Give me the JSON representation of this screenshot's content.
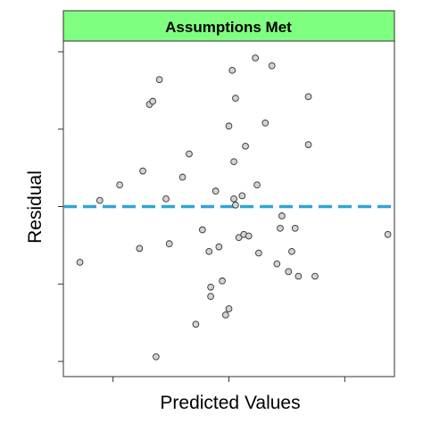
{
  "chart_data": {
    "type": "scatter",
    "title": "Assumptions Met",
    "xlabel": "Predicted Values",
    "ylabel": "Residual",
    "xlim": [
      0,
      1
    ],
    "ylim": [
      -1,
      1
    ],
    "x_ticks": [
      0.15,
      0.5,
      0.85
    ],
    "y_ticks": [
      -1,
      -0.5,
      0,
      0.5,
      1
    ],
    "show_tick_labels": false,
    "grid": false,
    "reference_line": {
      "y": 0,
      "style": "dashed",
      "color": "#2EA5DA"
    },
    "colors": {
      "strip_fill": "#80FF80",
      "point_fill": "#D3D3D3",
      "point_stroke": "#333333",
      "frame": "#333333"
    },
    "points": [
      [
        0.05,
        -0.36
      ],
      [
        0.11,
        0.04
      ],
      [
        0.17,
        0.14
      ],
      [
        0.23,
        -0.27
      ],
      [
        0.24,
        0.23
      ],
      [
        0.26,
        0.66
      ],
      [
        0.27,
        0.68
      ],
      [
        0.28,
        -0.97
      ],
      [
        0.29,
        0.82
      ],
      [
        0.31,
        0.05
      ],
      [
        0.32,
        -0.24
      ],
      [
        0.36,
        0.19
      ],
      [
        0.38,
        0.34
      ],
      [
        0.4,
        -0.76
      ],
      [
        0.42,
        -0.15
      ],
      [
        0.44,
        -0.29
      ],
      [
        0.445,
        -0.52
      ],
      [
        0.445,
        -0.58
      ],
      [
        0.46,
        0.1
      ],
      [
        0.47,
        -0.26
      ],
      [
        0.48,
        -0.48
      ],
      [
        0.49,
        -0.7
      ],
      [
        0.5,
        -0.66
      ],
      [
        0.5,
        0.52
      ],
      [
        0.51,
        0.88
      ],
      [
        0.515,
        0.29
      ],
      [
        0.515,
        0.05
      ],
      [
        0.52,
        0.7
      ],
      [
        0.52,
        0.01
      ],
      [
        0.53,
        -0.2
      ],
      [
        0.54,
        0.07
      ],
      [
        0.545,
        -0.18
      ],
      [
        0.55,
        0.39
      ],
      [
        0.56,
        -0.19
      ],
      [
        0.58,
        0.96
      ],
      [
        0.585,
        0.14
      ],
      [
        0.59,
        -0.3
      ],
      [
        0.61,
        0.54
      ],
      [
        0.63,
        0.91
      ],
      [
        0.645,
        -0.37
      ],
      [
        0.655,
        -0.14
      ],
      [
        0.66,
        -0.06
      ],
      [
        0.68,
        -0.42
      ],
      [
        0.69,
        -0.29
      ],
      [
        0.7,
        -0.14
      ],
      [
        0.71,
        -0.45
      ],
      [
        0.74,
        0.71
      ],
      [
        0.74,
        0.4
      ],
      [
        0.76,
        -0.45
      ],
      [
        0.98,
        -0.18
      ]
    ]
  }
}
